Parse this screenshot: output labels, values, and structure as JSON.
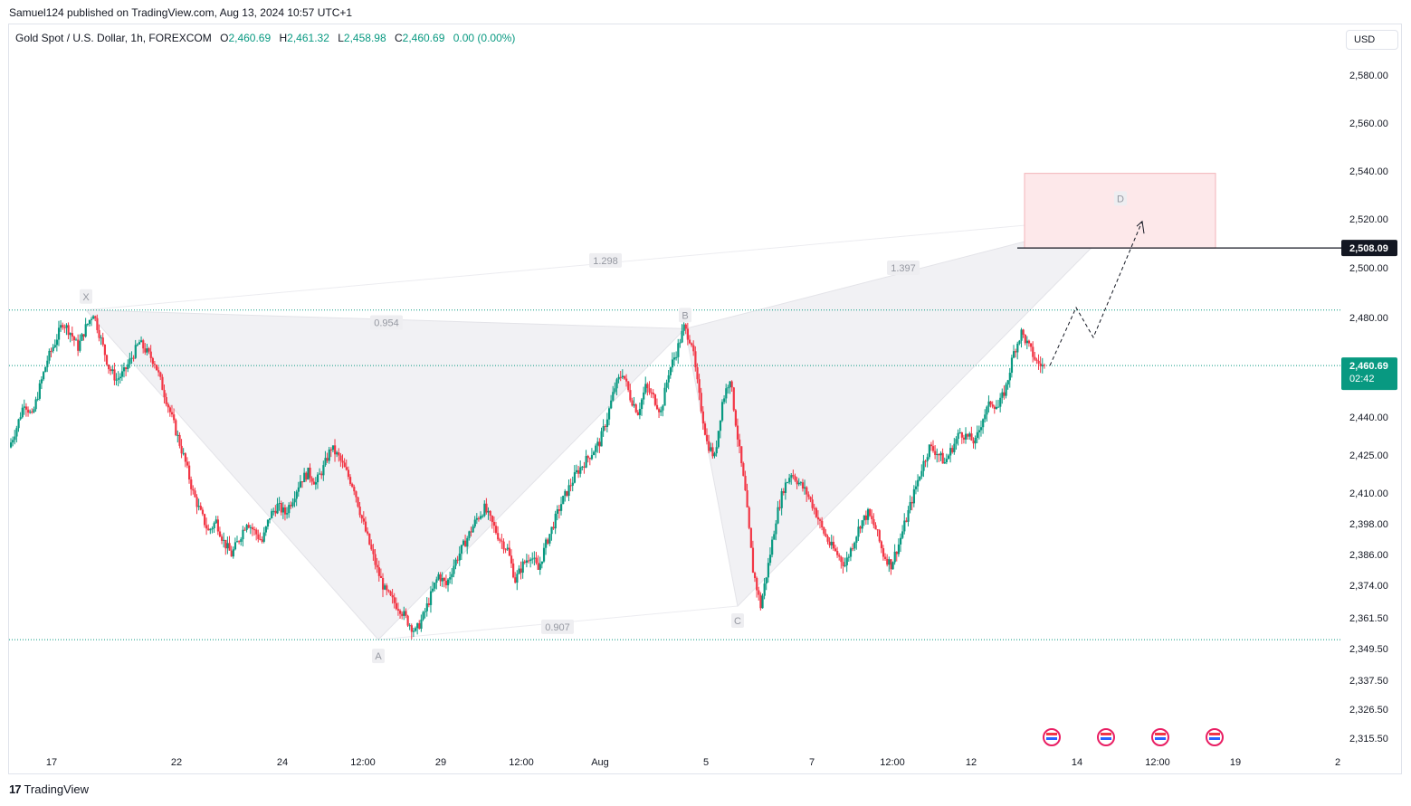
{
  "header": {
    "published": "Samuel124 published on TradingView.com, Aug 13, 2024 10:57 UTC+1"
  },
  "legend": {
    "symbol": "Gold Spot / U.S. Dollar, 1h, FOREXCOM",
    "open_label": "O",
    "open": "2,460.69",
    "high_label": "H",
    "high": "2,461.32",
    "low_label": "L",
    "low": "2,458.98",
    "close_label": "C",
    "close": "2,460.69",
    "change": "0.00 (0.00%)"
  },
  "currency_button": "USD",
  "footer": {
    "brand": "TradingView",
    "logo": "17"
  },
  "colors": {
    "up": "#089981",
    "down": "#f23645",
    "pattern_fill": "#f0f0f3",
    "target_box": "#fde8ea",
    "dotted": "#089981"
  },
  "chart_data": {
    "type": "candlestick",
    "title": "Gold Spot / U.S. Dollar, 1h, FOREXCOM",
    "ylabel": "USD",
    "price_ticks": [
      "2,580.00",
      "2,560.00",
      "2,540.00",
      "2,520.00",
      "2,500.00",
      "2,480.00",
      "2,440.00",
      "2,425.00",
      "2,410.00",
      "2,398.00",
      "2,386.00",
      "2,374.00",
      "2,361.50",
      "2,349.50",
      "2,337.50",
      "2,326.50",
      "2,315.50"
    ],
    "time_ticks": [
      "17",
      "22",
      "24",
      "12:00",
      "29",
      "12:00",
      "Aug",
      "5",
      "7",
      "12:00",
      "12",
      "14",
      "12:00",
      "19",
      "2"
    ],
    "last_price": "2,460.69",
    "countdown": "02:42",
    "level_line": "2,508.09",
    "harmonic_points": [
      {
        "label": "X",
        "price": 2483.0
      },
      {
        "label": "A",
        "price": 2353.0
      },
      {
        "label": "B",
        "price": 2475.5
      },
      {
        "label": "C",
        "price": 2366.0
      },
      {
        "label": "D",
        "price": 2521.0
      }
    ],
    "ratios": [
      "0.954",
      "1.298",
      "1.397",
      "0.907"
    ],
    "path_points": [
      2428,
      2436,
      2446,
      2440,
      2452,
      2463,
      2470,
      2478,
      2474,
      2468,
      2476,
      2482,
      2471,
      2460,
      2455,
      2458,
      2464,
      2470,
      2466,
      2462,
      2452,
      2442,
      2432,
      2422,
      2410,
      2402,
      2395,
      2399,
      2391,
      2386,
      2392,
      2399,
      2395,
      2391,
      2401,
      2405,
      2402,
      2408,
      2415,
      2418,
      2414,
      2420,
      2428,
      2424,
      2418,
      2412,
      2400,
      2390,
      2380,
      2372,
      2368,
      2365,
      2360,
      2356,
      2362,
      2370,
      2378,
      2374,
      2382,
      2388,
      2394,
      2400,
      2404,
      2398,
      2392,
      2388,
      2376,
      2382,
      2386,
      2380,
      2390,
      2398,
      2406,
      2412,
      2418,
      2422,
      2426,
      2430,
      2440,
      2452,
      2458,
      2448,
      2442,
      2452,
      2448,
      2442,
      2458,
      2466,
      2476,
      2470,
      2448,
      2430,
      2424,
      2446,
      2456,
      2432,
      2410,
      2380,
      2366,
      2382,
      2400,
      2412,
      2418,
      2414,
      2410,
      2404,
      2396,
      2390,
      2386,
      2382,
      2390,
      2398,
      2402,
      2396,
      2386,
      2382,
      2390,
      2400,
      2410,
      2420,
      2428,
      2426,
      2422,
      2428,
      2434,
      2432,
      2430,
      2440,
      2446,
      2444,
      2452,
      2466,
      2474,
      2468,
      2462,
      2460
    ]
  }
}
